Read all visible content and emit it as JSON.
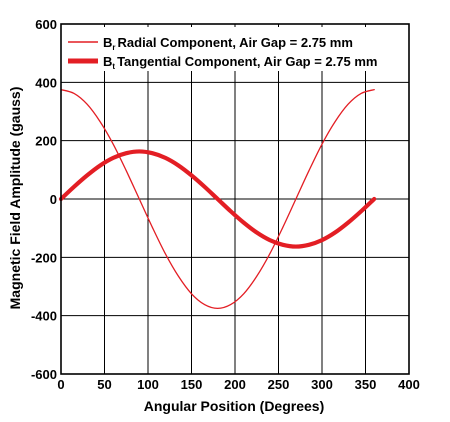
{
  "chart_data": {
    "type": "line",
    "title": "",
    "xlabel": "Angular Position (Degrees)",
    "ylabel": "Magnetic Field Amplitude (gauss)",
    "xlim": [
      0,
      400
    ],
    "ylim": [
      -600,
      600
    ],
    "x_ticks": [
      0,
      50,
      100,
      150,
      200,
      250,
      300,
      350,
      400
    ],
    "y_ticks": [
      -600,
      -400,
      -200,
      0,
      200,
      400,
      600
    ],
    "grid": true,
    "legend_position": "top",
    "colors": {
      "series": "#e31e24",
      "grid": "#000000"
    },
    "series": [
      {
        "name": "Radial Component, Air Gap = 2.75 mm",
        "name_symbol": "B",
        "name_subscript": "r",
        "line": "thin",
        "x": [
          0,
          15,
          30,
          45,
          60,
          75,
          90,
          105,
          120,
          135,
          150,
          165,
          180,
          195,
          210,
          225,
          240,
          255,
          270,
          285,
          300,
          315,
          330,
          345,
          360
        ],
        "y": [
          375,
          362,
          325,
          265,
          188,
          97,
          0,
          -97,
          -188,
          -265,
          -325,
          -362,
          -375,
          -362,
          -325,
          -265,
          -188,
          -97,
          0,
          97,
          188,
          265,
          325,
          362,
          375
        ]
      },
      {
        "name": "Tangential Component, Air Gap = 2.75 mm",
        "name_symbol": "B",
        "name_subscript": "t",
        "line": "thick",
        "x": [
          0,
          15,
          30,
          45,
          60,
          75,
          90,
          105,
          120,
          135,
          150,
          165,
          180,
          195,
          210,
          225,
          240,
          255,
          270,
          285,
          300,
          315,
          330,
          345,
          360
        ],
        "y": [
          0,
          42,
          81,
          115,
          141,
          157,
          163,
          157,
          141,
          115,
          81,
          42,
          0,
          -42,
          -81,
          -115,
          -141,
          -157,
          -163,
          -157,
          -141,
          -115,
          -81,
          -42,
          0
        ]
      }
    ]
  }
}
